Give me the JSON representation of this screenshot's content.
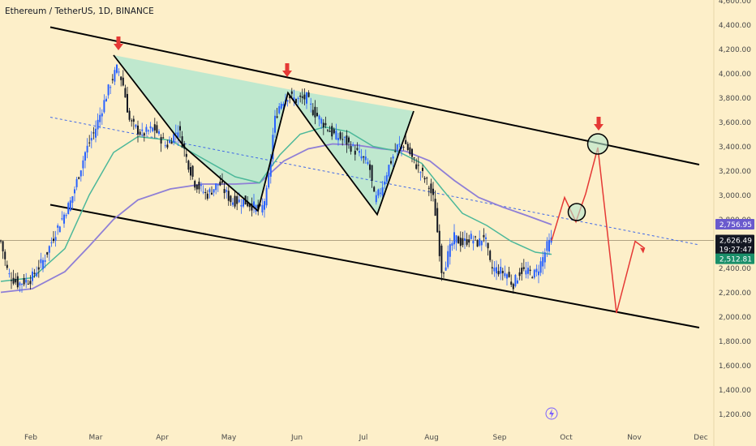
{
  "header": {
    "symbol_title": "Ethereum / TetherUS, 1D, BINANCE"
  },
  "colors": {
    "background": "#fdefc9",
    "candle_up": "#2962ff",
    "candle_down": "#131722",
    "ma_fast": "#4cb89a",
    "ma_slow": "#8f7fd6",
    "projection": "#e53935",
    "arrow_marker": "#e53935",
    "channel_line": "#000000",
    "midline": "#3f68e8",
    "pattern_fill": "#b4e6cf",
    "tag_ma_slow": "#6a5acd",
    "tag_price": "#131722",
    "tag_ma_fast": "#1a8f6a"
  },
  "chart_data": {
    "type": "candlestick",
    "x_axis_labels": [
      "Feb",
      "Mar",
      "Apr",
      "May",
      "Jun",
      "Jul",
      "Aug",
      "Sep",
      "Oct",
      "Nov",
      "Dec"
    ],
    "y_axis_labels": [
      "1,200.00",
      "1,400.00",
      "1,600.00",
      "1,800.00",
      "2,000.00",
      "2,200.00",
      "2,400.00",
      "2,600.00",
      "2,800.00",
      "3,000.00",
      "3,200.00",
      "3,400.00",
      "3,600.00",
      "3,800.00",
      "4,000.00",
      "4,200.00",
      "4,400.00",
      "4,600.00"
    ],
    "ylim": [
      1150,
      4650
    ],
    "price_tags": {
      "ma_slow_value": "2,756.95",
      "last_price": "2,626.49",
      "countdown": "19:27:47",
      "ma_fast_value": "2,512.81"
    },
    "price_path": [
      [
        1,
        2620
      ],
      [
        10,
        2350
      ],
      [
        22,
        2270
      ],
      [
        38,
        2310
      ],
      [
        55,
        2480
      ],
      [
        70,
        2720
      ],
      [
        88,
        2960
      ],
      [
        105,
        3350
      ],
      [
        118,
        3550
      ],
      [
        130,
        3800
      ],
      [
        138,
        3950
      ],
      [
        145,
        4050
      ],
      [
        152,
        3900
      ],
      [
        160,
        3600
      ],
      [
        175,
        3500
      ],
      [
        190,
        3550
      ],
      [
        205,
        3400
      ],
      [
        220,
        3550
      ],
      [
        230,
        3300
      ],
      [
        240,
        3100
      ],
      [
        255,
        3000
      ],
      [
        270,
        3100
      ],
      [
        285,
        2950
      ],
      [
        300,
        2950
      ],
      [
        315,
        2900
      ],
      [
        322,
        2870
      ],
      [
        330,
        3050
      ],
      [
        338,
        3600
      ],
      [
        345,
        3750
      ],
      [
        355,
        3820
      ],
      [
        365,
        3780
      ],
      [
        378,
        3800
      ],
      [
        385,
        3700
      ],
      [
        395,
        3620
      ],
      [
        410,
        3500
      ],
      [
        425,
        3450
      ],
      [
        440,
        3350
      ],
      [
        455,
        3250
      ],
      [
        462,
        2950
      ],
      [
        470,
        3050
      ],
      [
        480,
        3250
      ],
      [
        490,
        3400
      ],
      [
        500,
        3420
      ],
      [
        508,
        3300
      ],
      [
        518,
        3200
      ],
      [
        528,
        3080
      ],
      [
        535,
        2950
      ],
      [
        540,
        2650
      ],
      [
        545,
        2350
      ],
      [
        552,
        2500
      ],
      [
        560,
        2650
      ],
      [
        570,
        2600
      ],
      [
        580,
        2650
      ],
      [
        590,
        2600
      ],
      [
        597,
        2680
      ],
      [
        605,
        2400
      ],
      [
        615,
        2380
      ],
      [
        625,
        2350
      ],
      [
        632,
        2260
      ],
      [
        642,
        2380
      ],
      [
        652,
        2360
      ],
      [
        660,
        2350
      ],
      [
        668,
        2460
      ],
      [
        675,
        2590
      ],
      [
        680,
        2626
      ]
    ],
    "ma_fast_path": [
      [
        1,
        2290
      ],
      [
        40,
        2320
      ],
      [
        80,
        2560
      ],
      [
        110,
        3000
      ],
      [
        140,
        3350
      ],
      [
        170,
        3480
      ],
      [
        210,
        3450
      ],
      [
        250,
        3300
      ],
      [
        290,
        3150
      ],
      [
        320,
        3100
      ],
      [
        345,
        3330
      ],
      [
        370,
        3500
      ],
      [
        400,
        3560
      ],
      [
        430,
        3520
      ],
      [
        460,
        3400
      ],
      [
        490,
        3360
      ],
      [
        520,
        3260
      ],
      [
        545,
        3050
      ],
      [
        570,
        2850
      ],
      [
        600,
        2750
      ],
      [
        630,
        2620
      ],
      [
        660,
        2530
      ],
      [
        680,
        2513
      ]
    ],
    "ma_slow_path": [
      [
        1,
        2200
      ],
      [
        40,
        2230
      ],
      [
        80,
        2370
      ],
      [
        110,
        2580
      ],
      [
        140,
        2800
      ],
      [
        170,
        2960
      ],
      [
        210,
        3050
      ],
      [
        250,
        3090
      ],
      [
        290,
        3090
      ],
      [
        320,
        3100
      ],
      [
        350,
        3280
      ],
      [
        380,
        3380
      ],
      [
        410,
        3420
      ],
      [
        440,
        3410
      ],
      [
        470,
        3380
      ],
      [
        500,
        3360
      ],
      [
        530,
        3280
      ],
      [
        560,
        3120
      ],
      [
        590,
        2980
      ],
      [
        620,
        2900
      ],
      [
        650,
        2830
      ],
      [
        680,
        2757
      ]
    ],
    "projection_path": [
      [
        680,
        2626
      ],
      [
        696,
        2980
      ],
      [
        710,
        2780
      ],
      [
        722,
        3010
      ],
      [
        737,
        3390
      ],
      [
        760,
        2030
      ],
      [
        783,
        2620
      ],
      [
        795,
        2560
      ]
    ],
    "channel_upper": [
      [
        62,
        4380
      ],
      [
        862,
        3250
      ]
    ],
    "channel_lower": [
      [
        62,
        2920
      ],
      [
        862,
        1910
      ]
    ],
    "midline": [
      [
        62,
        3640
      ],
      [
        862,
        2590
      ]
    ],
    "pattern_fill_points": [
      [
        140,
        4150
      ],
      [
        355,
        3870
      ],
      [
        510,
        3690
      ],
      [
        465,
        2840
      ],
      [
        400,
        3420
      ],
      [
        355,
        3840
      ],
      [
        318,
        2870
      ],
      [
        228,
        3390
      ]
    ],
    "pattern_lines": [
      [
        [
          140,
          4150
        ],
        [
          228,
          3390
        ],
        [
          318,
          2870
        ],
        [
          355,
          3840
        ],
        [
          400,
          3420
        ],
        [
          465,
          2840
        ],
        [
          510,
          3690
        ]
      ]
    ],
    "circle_markers": [
      [
        737,
        3420
      ],
      [
        711,
        2860
      ]
    ],
    "arrow_markers": [
      [
        146,
        4250
      ],
      [
        354,
        4030
      ],
      [
        738,
        3590
      ]
    ],
    "last_price_guide": 2626
  }
}
